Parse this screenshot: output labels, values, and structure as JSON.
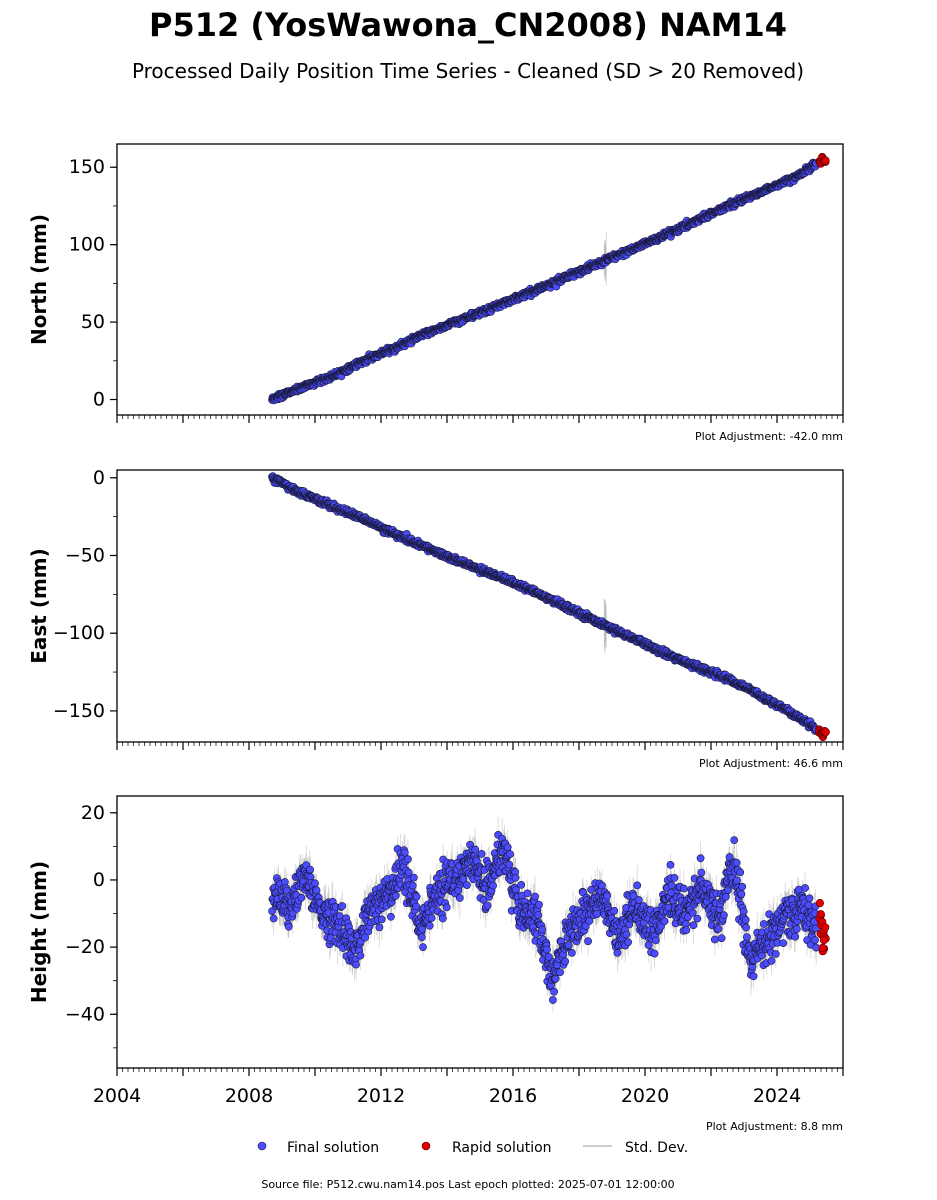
{
  "title": "P512 (YosWawona_CN2008) NAM14",
  "subtitle": "Processed Daily Position Time Series - Cleaned (SD > 20 Removed)",
  "x_tick_labels": [
    "2004",
    "2008",
    "2012",
    "2016",
    "2020",
    "2024"
  ],
  "legend": {
    "final_label": "Final solution",
    "rapid_label": "Rapid solution",
    "std_label": "Std. Dev."
  },
  "footer": "Source file: P512.cwu.nam14.pos  Last epoch plotted: 2025-07-01 12:00:00",
  "colors": {
    "final": "#4B4BFF",
    "rapid": "#E00000",
    "marker_edge": "#1a1a3a",
    "std_dev": "#888888"
  },
  "chart_data": [
    {
      "type": "scatter",
      "ylabel": "North (mm)",
      "adjustment": "Plot Adjustment: -42.0 mm",
      "xlim": [
        2004.0,
        2026.0
      ],
      "ylim": [
        -10,
        165
      ],
      "yticks": [
        0,
        50,
        100,
        150
      ],
      "grid": false,
      "series": [
        {
          "name": "Final solution",
          "x": [
            2008.7,
            2009.5,
            2010.5,
            2011.5,
            2012.5,
            2013.5,
            2014.5,
            2015.5,
            2016.5,
            2017.5,
            2018.5,
            2019.5,
            2020.5,
            2021.5,
            2022.5,
            2023.5,
            2024.5,
            2025.2
          ],
          "y": [
            0,
            7,
            15,
            25,
            34,
            44,
            52,
            60,
            69,
            78,
            87,
            96,
            105,
            115,
            125,
            134,
            143,
            152
          ]
        },
        {
          "name": "Rapid solution",
          "x": [
            2025.3,
            2025.35,
            2025.4,
            2025.45
          ],
          "y": [
            153,
            154,
            155,
            154
          ]
        }
      ]
    },
    {
      "type": "scatter",
      "ylabel": "East (mm)",
      "adjustment": "Plot Adjustment: 46.6 mm",
      "xlim": [
        2004.0,
        2026.0
      ],
      "ylim": [
        -170,
        5
      ],
      "yticks": [
        0,
        -50,
        -100,
        -150
      ],
      "grid": false,
      "series": [
        {
          "name": "Final solution",
          "x": [
            2008.7,
            2009.5,
            2010.5,
            2011.5,
            2012.5,
            2013.5,
            2014.5,
            2015.5,
            2016.5,
            2017.5,
            2018.5,
            2019.5,
            2020.5,
            2021.5,
            2022.5,
            2023.5,
            2024.5,
            2025.2
          ],
          "y": [
            0,
            -9,
            -18,
            -27,
            -37,
            -46,
            -55,
            -63,
            -72,
            -82,
            -92,
            -102,
            -112,
            -121,
            -129,
            -140,
            -152,
            -162
          ]
        },
        {
          "name": "Rapid solution",
          "x": [
            2025.3,
            2025.35,
            2025.4,
            2025.45
          ],
          "y": [
            -163,
            -164,
            -165,
            -164
          ]
        }
      ]
    },
    {
      "type": "scatter",
      "ylabel": "Height (mm)",
      "adjustment": "Plot Adjustment: 8.8 mm",
      "xlim": [
        2004.0,
        2026.0
      ],
      "ylim": [
        -56,
        25
      ],
      "yticks": [
        20,
        0,
        -20,
        -40
      ],
      "grid": false,
      "series": [
        {
          "name": "Final solution",
          "x": [
            2008.7,
            2009.2,
            2009.7,
            2010.2,
            2010.7,
            2011.2,
            2011.7,
            2012.2,
            2012.7,
            2013.2,
            2013.7,
            2014.2,
            2014.7,
            2015.2,
            2015.7,
            2016.2,
            2016.7,
            2017.2,
            2017.7,
            2018.2,
            2018.7,
            2019.2,
            2019.7,
            2020.2,
            2020.7,
            2021.2,
            2021.7,
            2022.2,
            2022.7,
            2023.2,
            2023.7,
            2024.2,
            2024.7,
            2025.2
          ],
          "y": [
            -5,
            -8,
            2,
            -10,
            -12,
            -22,
            -8,
            -5,
            4,
            -15,
            -3,
            0,
            5,
            -2,
            10,
            -8,
            -12,
            -30,
            -15,
            -10,
            -4,
            -18,
            -8,
            -15,
            -5,
            -10,
            -2,
            -12,
            6,
            -25,
            -18,
            -12,
            -8,
            -15
          ]
        },
        {
          "name": "Rapid solution",
          "x": [
            2025.3,
            2025.35,
            2025.4,
            2025.45
          ],
          "y": [
            -12,
            -15,
            -18,
            -14
          ]
        }
      ]
    }
  ]
}
